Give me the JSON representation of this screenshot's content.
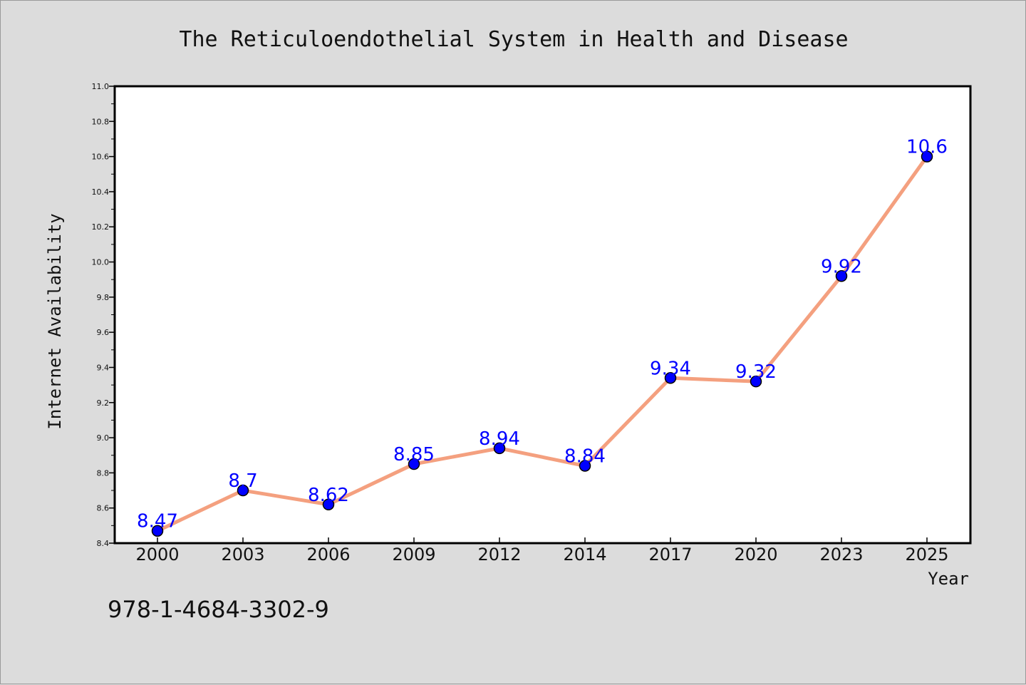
{
  "chart_data": {
    "type": "line",
    "title": "The Reticuloendothelial System in Health and Disease",
    "xlabel": "Year",
    "ylabel": "Internet Availability",
    "categories": [
      "2000",
      "2003",
      "2006",
      "2009",
      "2012",
      "2014",
      "2017",
      "2020",
      "2023",
      "2025"
    ],
    "series": [
      {
        "values": [
          8.47,
          8.7,
          8.62,
          8.85,
          8.94,
          8.84,
          9.34,
          9.32,
          9.92,
          10.6
        ],
        "data_labels": [
          "8.47",
          "8.7",
          "8.62",
          "8.85",
          "8.94",
          "8.84",
          "9.34",
          "9.32",
          "9.92",
          "10.6"
        ],
        "line_color": "#f4a07f",
        "marker_color": "#0000ff"
      }
    ],
    "ylim": [
      8.4,
      11.0
    ],
    "yticks": [
      "8.4",
      "8.6",
      "8.8",
      "9.0",
      "9.2",
      "9.4",
      "9.6",
      "9.8",
      "10.0",
      "10.2",
      "10.4",
      "10.6",
      "10.8",
      "11.0"
    ],
    "grid": false,
    "legend": "none"
  },
  "footer": {
    "isbn": "978-1-4684-3302-9"
  },
  "colors": {
    "background": "#dcdcdc",
    "plot_background": "#ffffff",
    "line": "#f4a07f",
    "marker": "#0000ff",
    "data_label": "#0000ff"
  }
}
